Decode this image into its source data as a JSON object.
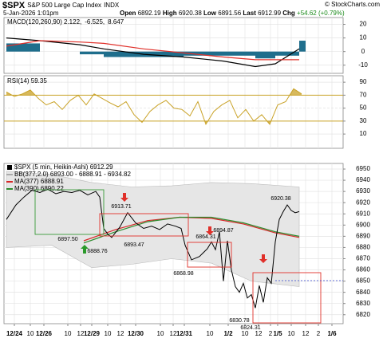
{
  "header": {
    "symbol": "$SPX",
    "name": "S&P 500 Large Cap Index",
    "exchange": "INDX",
    "date": "5-Jan-2026 1:01pm",
    "open_label": "Open",
    "open": "6892.19",
    "high_label": "High",
    "high": "6920.38",
    "low_label": "Low",
    "low": "6891.56",
    "last_label": "Last",
    "last": "6912.99",
    "chg_label": "Chg",
    "chg": "+54.62 (+0.79%)",
    "credit": "© StockCharts.com"
  },
  "chart_data": [
    {
      "type": "line",
      "title": "MACD(120,260,90)",
      "x": [
        3,
        45,
        95,
        125,
        175,
        225,
        275,
        315,
        340,
        370
      ],
      "series": [
        {
          "name": "2.122,",
          "color": "#000000",
          "values": [
            10,
            8,
            5,
            2,
            -2,
            -4,
            -7,
            -11,
            -9,
            2
          ]
        },
        {
          "name": "-6.525,",
          "color": "#e0302a",
          "values": [
            4,
            8,
            7,
            6,
            2,
            -1,
            -4,
            -6,
            -6,
            -6
          ]
        },
        {
          "name": "8.647",
          "color": "#1f6e8c",
          "style": "area",
          "values": [
            6,
            0,
            -2,
            -4,
            -4,
            -3,
            -3,
            -5,
            -3,
            8
          ]
        }
      ],
      "ylim": [
        -16,
        25
      ],
      "yticks": [
        20,
        10,
        0,
        -10
      ]
    },
    {
      "type": "line",
      "title": "RSI(14) 59.35",
      "color": "#c9a227",
      "overbought": 70,
      "oversold": 30,
      "x": [
        3,
        13,
        23,
        33,
        43,
        53,
        63,
        73,
        83,
        93,
        103,
        113,
        123,
        133,
        143,
        153,
        163,
        173,
        183,
        193,
        203,
        213,
        223,
        233,
        243,
        253,
        263,
        273,
        283,
        293,
        303,
        313,
        323,
        333,
        343,
        353,
        363,
        373
      ],
      "values": [
        75,
        68,
        72,
        78,
        65,
        55,
        60,
        48,
        62,
        70,
        55,
        72,
        65,
        58,
        52,
        60,
        40,
        28,
        45,
        55,
        62,
        50,
        48,
        38,
        60,
        25,
        45,
        55,
        62,
        35,
        48,
        30,
        40,
        25,
        55,
        60,
        80,
        72
      ],
      "ylim": [
        -12,
        100
      ],
      "yticks": [
        90,
        70,
        50,
        30,
        10
      ]
    },
    {
      "type": "line",
      "title": "$SPX (5 min, Heikin-Ashi) 6912.29",
      "xlim": [
        0,
        425
      ],
      "xticks": [
        {
          "value": 13,
          "label": "12/24"
        },
        {
          "value": 33,
          "label": "10"
        },
        {
          "value": 50,
          "label": "12/26"
        },
        {
          "value": 80,
          "label": "10"
        },
        {
          "value": 96,
          "label": "12"
        },
        {
          "value": 110,
          "label": "12/29"
        },
        {
          "value": 130,
          "label": "10"
        },
        {
          "value": 146,
          "label": "12"
        },
        {
          "value": 165,
          "label": "12/30"
        },
        {
          "value": 196,
          "label": "10"
        },
        {
          "value": 212,
          "label": "12"
        },
        {
          "value": 226,
          "label": "12/31"
        },
        {
          "value": 258,
          "label": "10"
        },
        {
          "value": 281,
          "label": "1/2"
        },
        {
          "value": 302,
          "label": "10"
        },
        {
          "value": 319,
          "label": "12"
        },
        {
          "value": 334,
          "label": "2"
        },
        {
          "value": 343,
          "label": "1/5"
        },
        {
          "value": 360,
          "label": "10"
        },
        {
          "value": 378,
          "label": "12"
        },
        {
          "value": 394,
          "label": "2"
        },
        {
          "value": 411,
          "label": "1/6"
        }
      ],
      "ylim": [
        6812,
        6955
      ],
      "yticks": [
        6950,
        6940,
        6930,
        6920,
        6910,
        6900,
        6890,
        6880,
        6870,
        6860,
        6850,
        6840,
        6830,
        6820
      ],
      "series": [
        {
          "name": "BB(377,2.0) 6893.00 - 6888.91 - 6934.82",
          "style": "band",
          "color": "#e6e6e6",
          "x": [
            3,
            60,
            110,
            160,
            210,
            260,
            310,
            370
          ],
          "upper": [
            6948,
            6945,
            6938,
            6934,
            6935,
            6938,
            6937,
            6934
          ],
          "lower": [
            6880,
            6882,
            6862,
            6865,
            6870,
            6866,
            6850,
            6845
          ]
        },
        {
          "name": "MA(377) 6888.91",
          "color": "#d62728",
          "x": [
            100,
            140,
            180,
            220,
            260,
            300,
            340,
            370
          ],
          "values": [
            6886,
            6896,
            6904,
            6907,
            6906,
            6901,
            6893,
            6889
          ]
        },
        {
          "name": "MA(390) 6890.22",
          "color": "#2e8b2e",
          "x": [
            100,
            140,
            180,
            220,
            260,
            300,
            340,
            370
          ],
          "values": [
            6884,
            6894,
            6903,
            6907,
            6907,
            6902,
            6894,
            6890
          ]
        },
        {
          "color": "#000000",
          "x": [
            3,
            15,
            25,
            35,
            45,
            55,
            65,
            75,
            85,
            95,
            105,
            115,
            120,
            125,
            130,
            135,
            145,
            155,
            165,
            175,
            185,
            195,
            205,
            215,
            222,
            227,
            235,
            245,
            255,
            260,
            265,
            270,
            275,
            280,
            285,
            290,
            295,
            300,
            305,
            310,
            315,
            320,
            325,
            330,
            335,
            340,
            345,
            350,
            355,
            360,
            365,
            370
          ],
          "values": [
            6905,
            6918,
            6925,
            6931,
            6929,
            6932,
            6928,
            6930,
            6929,
            6931,
            6927,
            6930,
            6925,
            6897,
            6892,
            6889,
            6898,
            6911,
            6902,
            6897,
            6899,
            6896,
            6901,
            6899,
            6897,
            6882,
            6869,
            6872,
            6879,
            6885,
            6878,
            6894,
            6850,
            6886,
            6860,
            6845,
            6840,
            6848,
            6835,
            6838,
            6826,
            6846,
            6831,
            6853,
            6848,
            6885,
            6905,
            6912,
            6918,
            6913,
            6911,
            6912
          ]
        }
      ],
      "annotations": [
        "6897.50",
        "6913.71",
        "6888.76",
        "6893.47",
        "6868.98",
        "6864.31",
        "6894.87",
        "6920.38",
        "6830.78",
        "6824.31"
      ]
    }
  ]
}
